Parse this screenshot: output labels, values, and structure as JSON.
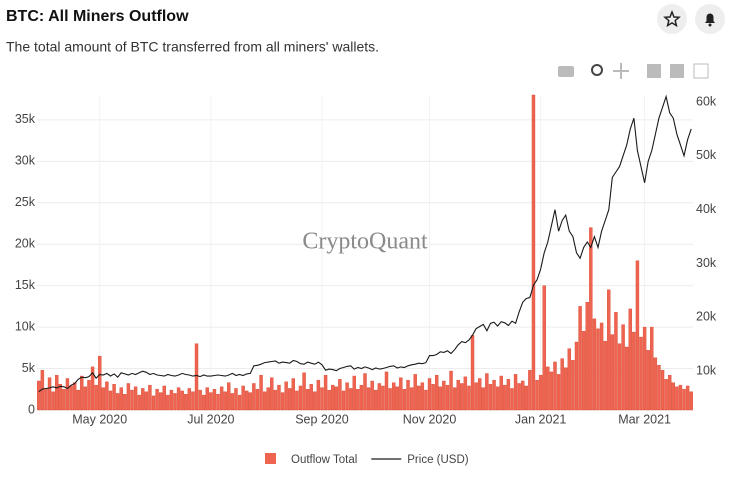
{
  "chart_data": {
    "type": "combo",
    "title": "BTC: All Miners Outflow",
    "subtitle": "The total amount of BTC transferred from all miners' wallets.",
    "watermark": "CryptoQuant",
    "categories": [
      null,
      null,
      null,
      null,
      null,
      null,
      null,
      null,
      null,
      null,
      null,
      null,
      null,
      null,
      null,
      null,
      null,
      "May 2020",
      null,
      null,
      null,
      null,
      null,
      null,
      null,
      null,
      null,
      null,
      null,
      null,
      null,
      null,
      null,
      null,
      null,
      null,
      null,
      null,
      null,
      null,
      null,
      null,
      null,
      null,
      null,
      null,
      null,
      null,
      "Jul 2020",
      null,
      null,
      null,
      null,
      null,
      null,
      null,
      null,
      null,
      null,
      null,
      null,
      null,
      null,
      null,
      null,
      null,
      null,
      null,
      null,
      null,
      null,
      null,
      null,
      null,
      null,
      null,
      null,
      null,
      null,
      "Sep 2020",
      null,
      null,
      null,
      null,
      null,
      null,
      null,
      null,
      null,
      null,
      null,
      null,
      null,
      null,
      null,
      null,
      null,
      null,
      null,
      null,
      null,
      null,
      null,
      null,
      null,
      null,
      null,
      null,
      null,
      "Nov 2020",
      null,
      null,
      null,
      null,
      null,
      null,
      null,
      null,
      null,
      null,
      null,
      null,
      null,
      null,
      null,
      null,
      null,
      null,
      null,
      null,
      null,
      null,
      null,
      null,
      null,
      null,
      null,
      null,
      null,
      null,
      "Jan 2021",
      null,
      null,
      null,
      null,
      null,
      null,
      null,
      null,
      null,
      null,
      null,
      null,
      null,
      null,
      null,
      null,
      null,
      null,
      null,
      null,
      null,
      null,
      null,
      null,
      null,
      null,
      null,
      null,
      "Mar 2021",
      null,
      null,
      null,
      null,
      null,
      null,
      null,
      null,
      null,
      null,
      null,
      null,
      null
    ],
    "series": [
      {
        "name": "Outflow Total",
        "type": "bar",
        "color": "#ef6450",
        "values": [
          3500,
          4800,
          2600,
          3900,
          2200,
          4200,
          3100,
          2500,
          3800,
          2900,
          3300,
          2400,
          4100,
          2800,
          3600,
          5200,
          3000,
          6500,
          2700,
          3400,
          2300,
          3100,
          2000,
          2700,
          1900,
          3200,
          2400,
          2800,
          1800,
          2600,
          2200,
          3000,
          1700,
          2500,
          2100,
          2900,
          1800,
          2400,
          2000,
          2700,
          2300,
          1900,
          2600,
          2200,
          8000,
          2400,
          1800,
          2700,
          2100,
          2500,
          1900,
          2800,
          2200,
          3300,
          2000,
          2600,
          1800,
          2900,
          2300,
          2100,
          3200,
          2500,
          4200,
          2200,
          2700,
          3900,
          2400,
          3000,
          2100,
          3400,
          2600,
          3800,
          2300,
          2900,
          4500,
          2500,
          3100,
          2200,
          3600,
          2700,
          4200,
          2400,
          3000,
          2800,
          3700,
          2300,
          3300,
          2600,
          4100,
          2500,
          3000,
          4400,
          2700,
          3500,
          2400,
          3200,
          2900,
          4600,
          2600,
          3300,
          2800,
          3900,
          2500,
          3600,
          2700,
          4300,
          2900,
          3300,
          2400,
          3800,
          3100,
          4200,
          2800,
          3500,
          3000,
          4700,
          2700,
          3600,
          3200,
          4000,
          2900,
          9000,
          3300,
          3800,
          2700,
          4400,
          3100,
          3600,
          2800,
          4100,
          3000,
          3700,
          2600,
          4300,
          3200,
          3500,
          2900,
          4800,
          38000,
          3600,
          4200,
          15000,
          5200,
          4600,
          5800,
          4300,
          6200,
          5100,
          7400,
          6000,
          8200,
          12500,
          9500,
          13000,
          22000,
          11000,
          9800,
          10500,
          8300,
          14500,
          9100,
          11800,
          8000,
          10300,
          7600,
          12200,
          9400,
          18000,
          8800,
          10000,
          7200,
          10000,
          6300,
          5400,
          4800,
          3700,
          4200,
          3300,
          2800,
          3000,
          2500,
          2900,
          2200
        ]
      },
      {
        "name": "Price (USD)",
        "type": "line",
        "axis": "y2",
        "color": "#1a1a1a",
        "values": [
          6200,
          6700,
          6800,
          6900,
          7100,
          6900,
          7200,
          7100,
          6800,
          7400,
          7700,
          8500,
          8900,
          8800,
          9000,
          9700,
          8700,
          9400,
          9300,
          9600,
          9100,
          9500,
          8900,
          9700,
          9500,
          9300,
          9600,
          9400,
          9700,
          10000,
          9800,
          9400,
          9600,
          9300,
          9200,
          9100,
          9400,
          9200,
          9100,
          9300,
          9600,
          9400,
          9300,
          9100,
          9200,
          9000,
          9300,
          9100,
          9100,
          9200,
          9300,
          9200,
          9100,
          9300,
          9600,
          9200,
          9400,
          9200,
          9500,
          9600,
          11000,
          11100,
          11300,
          11600,
          11700,
          11800,
          11900,
          11500,
          11700,
          11600,
          11500,
          12000,
          11800,
          11400,
          11300,
          11700,
          11500,
          11300,
          11700,
          11200,
          10200,
          10400,
          10300,
          10100,
          10500,
          10700,
          10900,
          11000,
          10400,
          10700,
          10500,
          10800,
          10600,
          10300,
          10600,
          10400,
          10500,
          10700,
          10900,
          11000,
          10600,
          10800,
          10700,
          11000,
          11200,
          11300,
          11500,
          11400,
          11600,
          12900,
          12900,
          13100,
          13600,
          13500,
          13800,
          13300,
          14000,
          14900,
          15500,
          15300,
          15800,
          16700,
          17900,
          18300,
          18700,
          17500,
          18900,
          19100,
          18400,
          19200,
          19000,
          18500,
          19300,
          18900,
          21000,
          22800,
          23500,
          23700,
          26000,
          27000,
          29000,
          32000,
          34000,
          37000,
          40000,
          36000,
          38000,
          39000,
          36000,
          35000,
          32000,
          31000,
          33000,
          34000,
          33000,
          35000,
          33000,
          36000,
          38000,
          40000,
          46000,
          47000,
          48000,
          50000,
          52000,
          55000,
          57000,
          51000,
          48000,
          45000,
          49000,
          51000,
          54000,
          57000,
          59000,
          61000,
          58000,
          57000,
          54000,
          52000,
          50000,
          53000,
          55000
        ]
      }
    ],
    "ylim": [
      0,
      38000
    ],
    "yticks": [
      0,
      {
        "value": 5000,
        "label": "5k"
      },
      {
        "value": 10000,
        "label": "10k"
      },
      {
        "value": 15000,
        "label": "15k"
      },
      {
        "value": 20000,
        "label": "20k"
      },
      {
        "value": 25000,
        "label": "25k"
      },
      {
        "value": 30000,
        "label": "30k"
      },
      {
        "value": 35000,
        "label": "35k"
      }
    ],
    "y2lim": [
      2800,
      61300
    ],
    "y2ticks": [
      {
        "value": 10000,
        "label": "10k"
      },
      {
        "value": 20000,
        "label": "20k"
      },
      {
        "value": 30000,
        "label": "30k"
      },
      {
        "value": 40000,
        "label": "40k"
      },
      {
        "value": 50000,
        "label": "50k"
      },
      {
        "value": 60000,
        "label": "60k"
      }
    ],
    "grid": true
  }
}
